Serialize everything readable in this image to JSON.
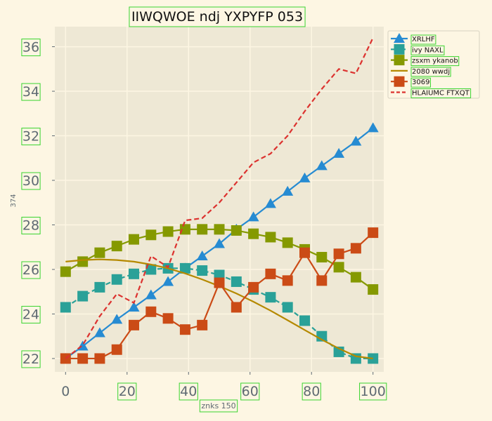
{
  "chart_data": {
    "type": "line",
    "title": "IIWQWOE ndj YXPYFP 053",
    "xlabel": "znks 150",
    "ylabel": "374",
    "xlim": [
      -3.5,
      103.5
    ],
    "ylim": [
      21.4,
      36.9
    ],
    "x_ticks": [
      0,
      20,
      40,
      60,
      80,
      100
    ],
    "x_tick_labels": [
      "0",
      "20",
      "40",
      "60",
      "80",
      "100"
    ],
    "y_ticks": [
      22,
      24,
      26,
      28,
      30,
      32,
      34,
      36
    ],
    "y_tick_labels": [
      "22",
      "24",
      "26",
      "28",
      "30",
      "32",
      "34",
      "36"
    ],
    "grid": true,
    "legend_position": "top-right",
    "x": [
      0,
      5.56,
      11.11,
      16.67,
      22.22,
      27.78,
      33.33,
      38.89,
      44.44,
      50,
      55.56,
      61.11,
      66.67,
      72.22,
      77.78,
      83.33,
      88.89,
      94.44,
      100
    ],
    "series": [
      {
        "name": "XRLHF",
        "color": "#268bd2",
        "style": "solid",
        "marker": "triangle",
        "values": [
          22.0,
          22.55,
          23.15,
          23.75,
          24.3,
          24.85,
          25.45,
          26.05,
          26.6,
          27.15,
          27.8,
          28.35,
          28.95,
          29.5,
          30.1,
          30.65,
          31.2,
          31.75,
          32.35
        ]
      },
      {
        "name": "ivy NAXL",
        "color": "#2aa198",
        "style": "dashed",
        "marker": "square",
        "values": [
          24.3,
          24.8,
          25.2,
          25.55,
          25.8,
          26.0,
          26.05,
          26.05,
          25.95,
          25.75,
          25.45,
          25.1,
          24.75,
          24.3,
          23.7,
          23.0,
          22.3,
          22.0,
          22.0
        ]
      },
      {
        "name": "zsxm ykanob",
        "color": "#859900",
        "style": "solid",
        "marker": "square",
        "values": [
          25.9,
          26.35,
          26.75,
          27.05,
          27.35,
          27.55,
          27.7,
          27.8,
          27.8,
          27.8,
          27.75,
          27.6,
          27.45,
          27.2,
          26.9,
          26.55,
          26.1,
          25.65,
          25.1
        ]
      },
      {
        "name": "2080 wwdj",
        "color": "#b58900",
        "style": "solid",
        "marker": "none",
        "values": [
          26.35,
          26.42,
          26.45,
          26.42,
          26.35,
          26.22,
          26.05,
          25.82,
          25.55,
          25.25,
          24.92,
          24.55,
          24.15,
          23.72,
          23.28,
          22.85,
          22.45,
          22.1,
          22.0
        ]
      },
      {
        "name": "3069",
        "color": "#cb4b16",
        "style": "solid",
        "marker": "square",
        "values": [
          22.0,
          22.0,
          22.0,
          22.4,
          23.5,
          24.1,
          23.8,
          23.3,
          23.5,
          25.4,
          24.3,
          25.2,
          25.8,
          25.5,
          26.75,
          25.5,
          26.7,
          26.95,
          27.65
        ]
      },
      {
        "name": "HLAIUMC FTXQT",
        "color": "#dc322f",
        "style": "dashed",
        "marker": "none",
        "values": [
          22.0,
          22.6,
          23.9,
          24.9,
          24.5,
          26.6,
          26.1,
          28.2,
          28.3,
          29.0,
          29.9,
          30.8,
          31.2,
          32.0,
          33.1,
          34.1,
          35.0,
          34.8,
          36.4
        ]
      }
    ]
  }
}
